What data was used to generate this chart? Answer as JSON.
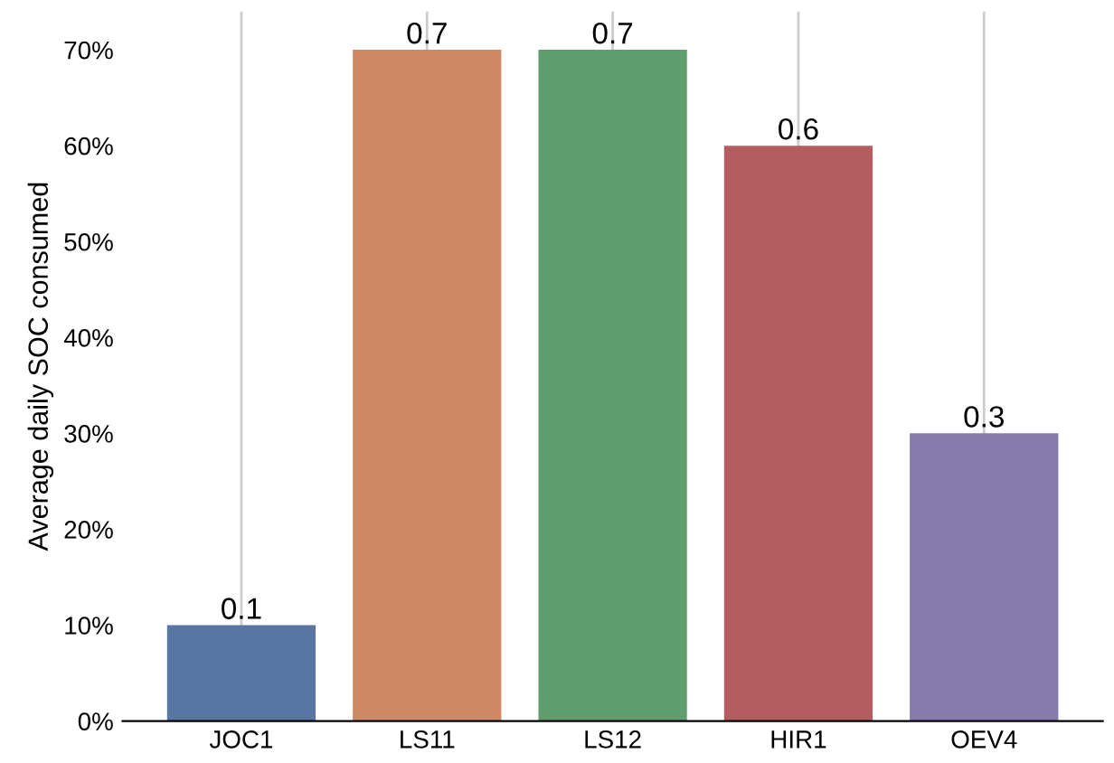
{
  "chart_data": {
    "type": "bar",
    "ylabel": "Average daily SOC consumed",
    "categories": [
      "JOC1",
      "LS11",
      "LS12",
      "HIR1",
      "OEV4"
    ],
    "values": [
      0.1,
      0.7,
      0.7,
      0.6,
      0.3
    ],
    "colors": [
      "#5975a4",
      "#cc8963",
      "#5f9e6e",
      "#b55d60",
      "#857aab"
    ],
    "ylim": [
      0,
      0.74
    ],
    "yticks": [
      {
        "value": 0,
        "label": "0%"
      },
      {
        "value": 0.1,
        "label": "10%"
      },
      {
        "value": 0.2,
        "label": "20%"
      },
      {
        "value": 0.3,
        "label": "30%"
      },
      {
        "value": 0.4,
        "label": "40%"
      },
      {
        "value": 0.5,
        "label": "50%"
      },
      {
        "value": 0.6,
        "label": "60%"
      },
      {
        "value": 0.7,
        "label": "70%"
      }
    ],
    "grid": "x",
    "data_labels": true
  }
}
